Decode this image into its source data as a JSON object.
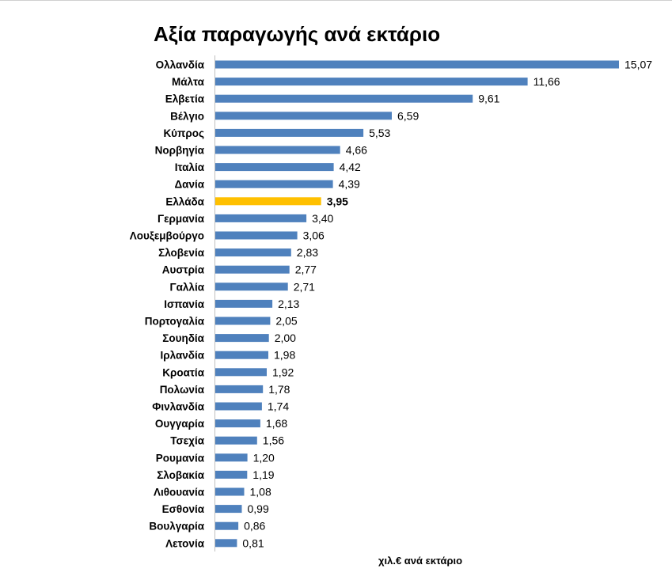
{
  "chart_data": {
    "type": "bar",
    "orientation": "horizontal",
    "title": "Αξία παραγωγής ανά εκτάριο",
    "xlabel": "χιλ.€ ανά εκτάριο",
    "ylabel": "",
    "xlim": [
      0,
      15.07
    ],
    "grid": false,
    "legend": "none",
    "bar_color": "#4F81BD",
    "highlight_color": "#FFC000",
    "highlight_category": "Ελλάδα",
    "categories": [
      "Ολλανδία",
      "Μάλτα",
      "Ελβετία",
      "Βέλγιο",
      "Κύπρος",
      "Νορβηγία",
      "Ιταλία",
      "Δανία",
      "Ελλάδα",
      "Γερμανία",
      "Λουξεμβούργο",
      "Σλοβενία",
      "Αυστρία",
      "Γαλλία",
      "Ισπανία",
      "Πορτογαλία",
      "Σουηδία",
      "Ιρλανδία",
      "Κροατία",
      "Πολωνία",
      "Φινλανδία",
      "Ουγγαρία",
      "Τσεχία",
      "Ρουμανία",
      "Σλοβακία",
      "Λιθουανία",
      "Εσθονία",
      "Βουλγαρία",
      "Λετονία"
    ],
    "values": [
      15.07,
      11.66,
      9.61,
      6.59,
      5.53,
      4.66,
      4.42,
      4.39,
      3.95,
      3.4,
      3.06,
      2.83,
      2.77,
      2.71,
      2.13,
      2.05,
      2.0,
      1.98,
      1.92,
      1.78,
      1.74,
      1.68,
      1.56,
      1.2,
      1.19,
      1.08,
      0.99,
      0.86,
      0.81
    ],
    "value_labels": [
      "15,07",
      "11,66",
      "9,61",
      "6,59",
      "5,53",
      "4,66",
      "4,42",
      "4,39",
      "3,95",
      "3,40",
      "3,06",
      "2,83",
      "2,77",
      "2,71",
      "2,13",
      "2,05",
      "2,00",
      "1,98",
      "1,92",
      "1,78",
      "1,74",
      "1,68",
      "1,56",
      "1,20",
      "1,19",
      "1,08",
      "0,99",
      "0,86",
      "0,81"
    ]
  }
}
